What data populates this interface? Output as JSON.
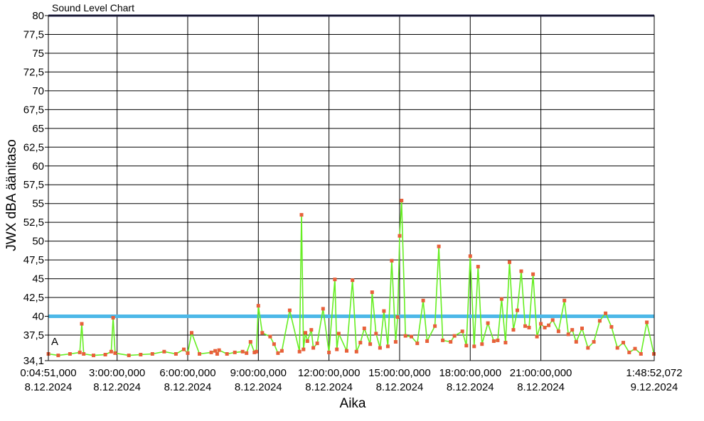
{
  "chart_data": {
    "type": "line",
    "title": "Sound Level Chart",
    "xlabel": "Aika",
    "ylabel": "JWX dBA äänitaso",
    "ylim": [
      34.1,
      80
    ],
    "grid": true,
    "legend": "none",
    "y_ticks": [
      {
        "value": 80,
        "label": "80"
      },
      {
        "value": 77.5,
        "label": "77,5"
      },
      {
        "value": 75,
        "label": "75"
      },
      {
        "value": 72.5,
        "label": "72,5"
      },
      {
        "value": 70,
        "label": "70"
      },
      {
        "value": 67.5,
        "label": "67,5"
      },
      {
        "value": 65,
        "label": "65"
      },
      {
        "value": 62.5,
        "label": "62,5"
      },
      {
        "value": 60,
        "label": "60"
      },
      {
        "value": 57.5,
        "label": "57,5"
      },
      {
        "value": 55,
        "label": "55"
      },
      {
        "value": 52.5,
        "label": "52,5"
      },
      {
        "value": 50,
        "label": "50"
      },
      {
        "value": 47.5,
        "label": "47,5"
      },
      {
        "value": 45,
        "label": "45"
      },
      {
        "value": 42.5,
        "label": "42,5"
      },
      {
        "value": 40,
        "label": "40"
      },
      {
        "value": 37.5,
        "label": "37,5"
      },
      {
        "value": 34.1,
        "label": "34,1"
      }
    ],
    "x_range": [
      "2024-12-08 00:04:51",
      "2024-12-09 01:48:52"
    ],
    "x_ticks": [
      {
        "value": "2024-12-08 00:04:51",
        "label": "0:04:51,000",
        "date": "8.12.2024"
      },
      {
        "value": "2024-12-08 03:00:00",
        "label": "3:00:00,000",
        "date": "8.12.2024"
      },
      {
        "value": "2024-12-08 06:00:00",
        "label": "6:00:00,000",
        "date": "8.12.2024"
      },
      {
        "value": "2024-12-08 09:00:00",
        "label": "9:00:00,000",
        "date": "8.12.2024"
      },
      {
        "value": "2024-12-08 12:00:00",
        "label": "12:00:00,000",
        "date": "8.12.2024"
      },
      {
        "value": "2024-12-08 15:00:00",
        "label": "15:00:00,000",
        "date": "8.12.2024"
      },
      {
        "value": "2024-12-08 18:00:00",
        "label": "18:00:00,000",
        "date": "8.12.2024"
      },
      {
        "value": "2024-12-08 21:00:00",
        "label": "21:00:00,000",
        "date": "8.12.2024"
      },
      {
        "value": "2024-12-09 01:48:52",
        "label": "1:48:52,072",
        "date": "9.12.2024"
      }
    ],
    "threshold": {
      "value": 40,
      "color": "#4db8e8"
    },
    "annotation": "A",
    "colors": {
      "line": "#66ee22",
      "marker": "#e8603a",
      "grid": "#000000",
      "top_band": "#2a2a5a"
    },
    "series": [
      {
        "x": [
          "2024-12-08 00:05",
          "2024-12-08 00:30",
          "2024-12-08 01:00",
          "2024-12-08 01:25",
          "2024-12-08 01:30",
          "2024-12-08 01:35",
          "2024-12-08 02:00",
          "2024-12-08 02:30",
          "2024-12-08 02:45",
          "2024-12-08 02:50",
          "2024-12-08 02:55",
          "2024-12-08 03:30",
          "2024-12-08 04:00",
          "2024-12-08 04:30",
          "2024-12-08 05:00",
          "2024-12-08 05:30",
          "2024-12-08 05:50",
          "2024-12-08 06:00",
          "2024-12-08 06:10",
          "2024-12-08 06:30",
          "2024-12-08 07:00",
          "2024-12-08 07:10",
          "2024-12-08 07:15",
          "2024-12-08 07:20",
          "2024-12-08 07:40",
          "2024-12-08 08:00",
          "2024-12-08 08:20",
          "2024-12-08 08:30",
          "2024-12-08 08:40",
          "2024-12-08 08:50",
          "2024-12-08 08:55",
          "2024-12-08 09:00",
          "2024-12-08 09:10",
          "2024-12-08 09:30",
          "2024-12-08 09:40",
          "2024-12-08 09:50",
          "2024-12-08 10:00",
          "2024-12-08 10:20",
          "2024-12-08 10:45",
          "2024-12-08 10:50",
          "2024-12-08 10:55",
          "2024-12-08 11:00",
          "2024-12-08 11:05",
          "2024-12-08 11:15",
          "2024-12-08 11:20",
          "2024-12-08 11:30",
          "2024-12-08 11:45",
          "2024-12-08 12:00",
          "2024-12-08 12:15",
          "2024-12-08 12:20",
          "2024-12-08 12:25",
          "2024-12-08 12:45",
          "2024-12-08 13:00",
          "2024-12-08 13:10",
          "2024-12-08 13:20",
          "2024-12-08 13:30",
          "2024-12-08 13:45",
          "2024-12-08 13:50",
          "2024-12-08 14:00",
          "2024-12-08 14:10",
          "2024-12-08 14:20",
          "2024-12-08 14:30",
          "2024-12-08 14:40",
          "2024-12-08 14:50",
          "2024-12-08 14:55",
          "2024-12-08 15:00",
          "2024-12-08 15:05",
          "2024-12-08 15:15",
          "2024-12-08 15:30",
          "2024-12-08 15:45",
          "2024-12-08 16:00",
          "2024-12-08 16:10",
          "2024-12-08 16:30",
          "2024-12-08 16:40",
          "2024-12-08 16:50",
          "2024-12-08 17:10",
          "2024-12-08 17:20",
          "2024-12-08 17:40",
          "2024-12-08 17:50",
          "2024-12-08 18:00",
          "2024-12-08 18:10",
          "2024-12-08 18:20",
          "2024-12-08 18:30",
          "2024-12-08 18:45",
          "2024-12-08 19:00",
          "2024-12-08 19:10",
          "2024-12-08 19:20",
          "2024-12-08 19:30",
          "2024-12-08 19:40",
          "2024-12-08 19:50",
          "2024-12-08 20:00",
          "2024-12-08 20:10",
          "2024-12-08 20:20",
          "2024-12-08 20:30",
          "2024-12-08 20:40",
          "2024-12-08 20:50",
          "2024-12-08 21:00",
          "2024-12-08 21:10",
          "2024-12-08 21:20",
          "2024-12-08 21:30",
          "2024-12-08 21:45",
          "2024-12-08 22:00",
          "2024-12-08 22:10",
          "2024-12-08 22:20",
          "2024-12-08 22:30",
          "2024-12-08 22:45",
          "2024-12-08 23:00",
          "2024-12-08 23:15",
          "2024-12-08 23:30",
          "2024-12-08 23:45",
          "2024-12-09 00:00",
          "2024-12-09 00:15",
          "2024-12-09 00:30",
          "2024-12-09 00:45",
          "2024-12-09 01:00",
          "2024-12-09 01:15",
          "2024-12-09 01:30",
          "2024-12-09 01:48"
        ],
        "values": [
          35.0,
          34.8,
          35.0,
          35.2,
          39.0,
          35.0,
          34.8,
          34.9,
          35.3,
          39.8,
          35.1,
          34.8,
          34.9,
          35.0,
          35.3,
          35.0,
          35.6,
          35.1,
          37.8,
          35.0,
          35.2,
          35.4,
          35.0,
          35.5,
          35.0,
          35.2,
          35.3,
          35.1,
          36.6,
          35.2,
          35.3,
          41.4,
          37.8,
          37.3,
          36.3,
          35.1,
          35.4,
          40.8,
          35.3,
          53.5,
          35.6,
          37.8,
          36.7,
          38.2,
          35.8,
          36.4,
          41.0,
          35.2,
          44.9,
          35.6,
          37.7,
          35.4,
          44.8,
          35.3,
          36.5,
          38.4,
          36.3,
          43.2,
          37.7,
          35.8,
          40.7,
          36.0,
          47.4,
          36.6,
          39.9,
          50.7,
          55.4,
          37.4,
          37.3,
          36.4,
          42.1,
          36.7,
          38.7,
          49.3,
          36.8,
          36.6,
          37.4,
          38.0,
          36.1,
          48.0,
          36.0,
          46.6,
          36.3,
          39.1,
          36.7,
          36.8,
          42.3,
          36.5,
          47.2,
          38.2,
          40.8,
          46.0,
          38.7,
          38.5,
          45.6,
          37.3,
          39.0,
          38.5,
          38.8,
          39.5,
          38.0,
          42.1,
          37.6,
          38.2,
          36.6,
          38.4,
          35.8,
          36.6,
          39.4,
          40.4,
          38.6,
          35.8,
          36.5,
          35.2,
          35.7,
          35.0,
          39.2,
          35.0
        ]
      }
    ]
  }
}
